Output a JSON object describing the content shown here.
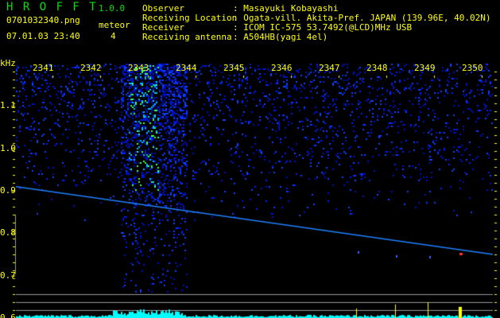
{
  "header": {
    "app_title": "H R O F F T",
    "version": "1.0.0",
    "filename": "0701032340.png",
    "datetime": "07.01.03 23:40",
    "meteor_label": "meteor",
    "meteor_count": "4",
    "info": [
      {
        "label": "Observer",
        "value": ": Masayuki Kobayashi"
      },
      {
        "label": "Receiving Location",
        "value": ": Ogata-vill. Akita-Pref. JAPAN (139.96E, 40.02N)"
      },
      {
        "label": "Receiver",
        "value": ": ICOM IC-575 53.7492(@LCD)MHz USB"
      },
      {
        "label": "Receiving antenna",
        "value": ": A504HB(yagi 4el)"
      }
    ]
  },
  "chart_data": {
    "type": "heatmap",
    "ylabel": "kHz",
    "x_ticks": [
      "2341",
      "2342",
      "2343",
      "2344",
      "2345",
      "2346",
      "2347",
      "2348",
      "2349",
      "2350"
    ],
    "y_ticks": [
      "1.1",
      "1.0",
      "0.9",
      "0.8",
      "0.7",
      "0.6"
    ],
    "ylim": [
      0.6,
      1.2
    ],
    "meteor_trace": {
      "start_khz": 0.91,
      "end_khz": 0.75
    },
    "colors": {
      "noise": "#0000ff",
      "strong": "#00ff80",
      "histogram": "#00ffff",
      "peak": "#ffff00",
      "text": "#ffff00",
      "title": "#00e000"
    }
  }
}
